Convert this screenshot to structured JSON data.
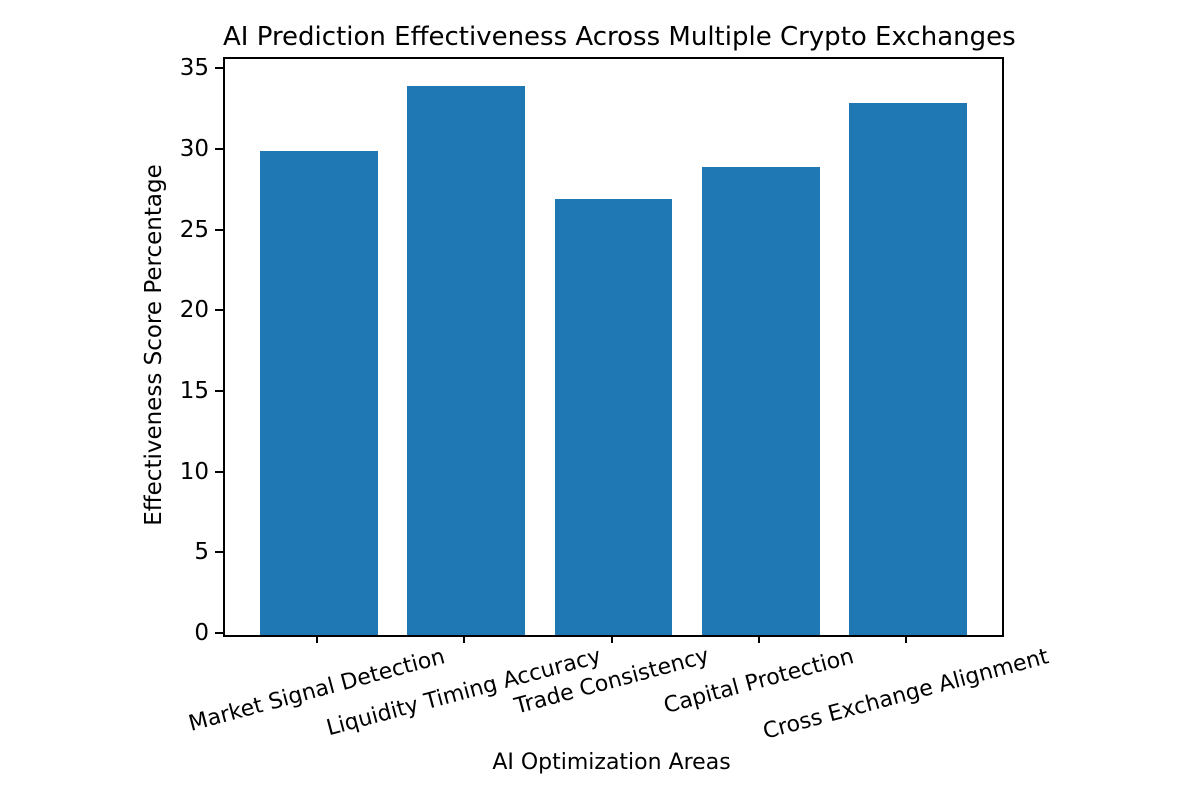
{
  "chart_data": {
    "type": "bar",
    "title": "AI Prediction Effectiveness Across Multiple Crypto Exchanges",
    "xlabel": "AI Optimization Areas",
    "ylabel": "Effectiveness Score Percentage",
    "categories": [
      "Market Signal Detection",
      "Liquidity Timing Accuracy",
      "Trade Consistency",
      "Capital Protection",
      "Cross Exchange Alignment"
    ],
    "values": [
      30,
      34,
      27,
      29,
      33
    ],
    "ylim": [
      0,
      35.7
    ],
    "yticks": [
      0,
      5,
      10,
      15,
      20,
      25,
      30,
      35
    ],
    "bar_color": "#1f77b4",
    "axis_color": "#000000",
    "grid": false,
    "legend": false,
    "x_tick_rotation_deg": 15
  }
}
